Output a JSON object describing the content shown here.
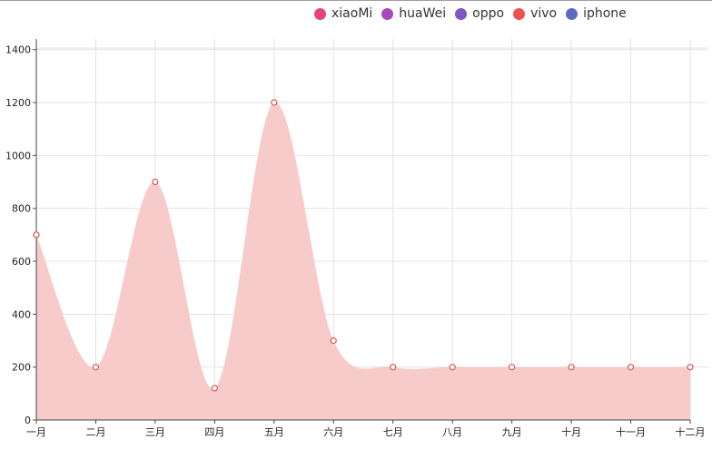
{
  "legend": [
    {
      "name": "xiaoMi",
      "color": "#e84377"
    },
    {
      "name": "huaWei",
      "color": "#ab47bc"
    },
    {
      "name": "oppo",
      "color": "#7e57c2"
    },
    {
      "name": "vivo",
      "color": "#ef5350"
    },
    {
      "name": "iphone",
      "color": "#5c6bc0"
    }
  ],
  "chart_data": {
    "type": "area",
    "categories": [
      "一月",
      "二月",
      "三月",
      "四月",
      "五月",
      "六月",
      "七月",
      "八月",
      "九月",
      "十月",
      "十一月",
      "十二月"
    ],
    "series": [
      {
        "values": [
          700,
          200,
          900,
          120,
          1200,
          300,
          200,
          200,
          200,
          200,
          200,
          200
        ],
        "fill": "#f8c8c8",
        "marker_color": "#d9534f"
      }
    ],
    "ylim": [
      0,
      1440
    ],
    "yticks": [
      0,
      200,
      400,
      600,
      800,
      1000,
      1200,
      1400
    ],
    "grid": true,
    "legend_position": "top"
  }
}
